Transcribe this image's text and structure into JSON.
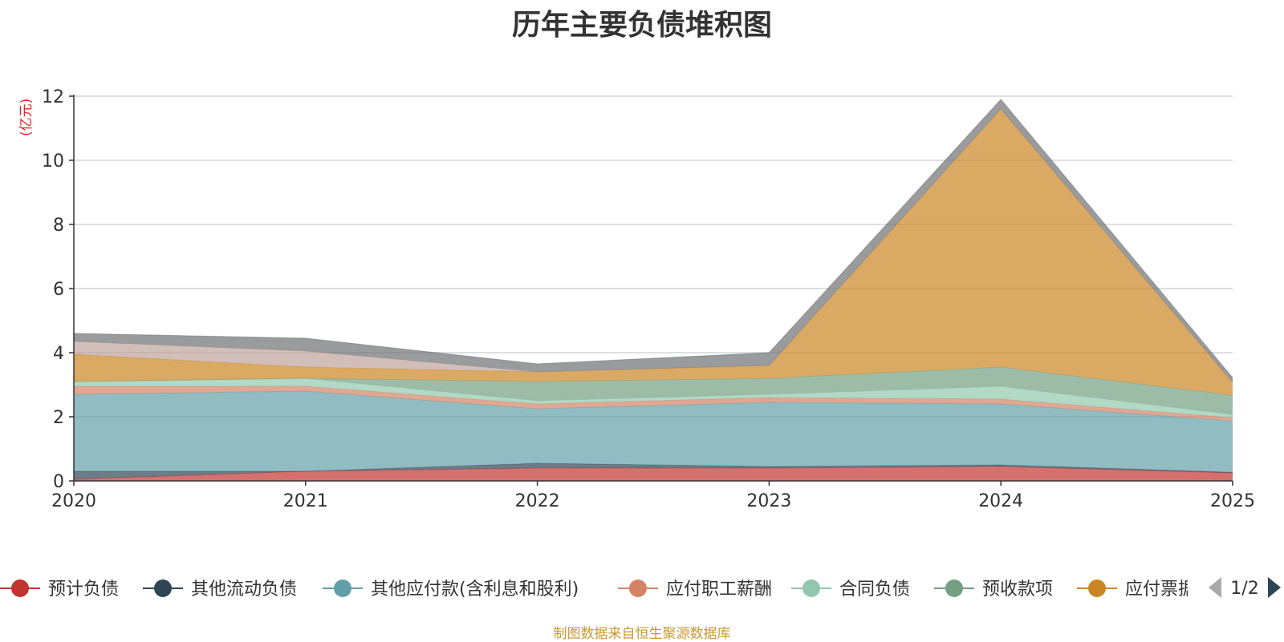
{
  "title": "历年主要负债堆积图",
  "y_unit": "(亿元)",
  "footer": "制图数据来自恒生聚源数据库",
  "pager": {
    "label": "1/2"
  },
  "chart_data": {
    "type": "area",
    "stacked": true,
    "x": [
      "2020",
      "2021",
      "2022",
      "2023",
      "2024",
      "2025"
    ],
    "ylim": [
      0,
      12
    ],
    "yticks": [
      0,
      2,
      4,
      6,
      8,
      10,
      12
    ],
    "grid": true,
    "legend_position": "bottom",
    "series": [
      {
        "name": "预计负债",
        "color": "#c23531",
        "values": [
          0.05,
          0.3,
          0.4,
          0.4,
          0.45,
          0.25
        ]
      },
      {
        "name": "其他流动负债",
        "color": "#2f4554",
        "values": [
          0.25,
          0.0,
          0.15,
          0.05,
          0.05,
          0.02
        ]
      },
      {
        "name": "其他应付款(含利息和股利)",
        "color": "#61a0a8",
        "values": [
          2.4,
          2.5,
          1.7,
          2.0,
          1.9,
          1.6
        ]
      },
      {
        "name": "应付职工薪酬",
        "color": "#d48265",
        "values": [
          0.25,
          0.15,
          0.15,
          0.15,
          0.15,
          0.1
        ]
      },
      {
        "name": "合同负债",
        "color": "#91c7ae",
        "values": [
          0.15,
          0.25,
          0.1,
          0.1,
          0.4,
          0.1
        ]
      },
      {
        "name": "预收款项",
        "color": "#749f83",
        "values": [
          0.0,
          0.0,
          0.6,
          0.5,
          0.6,
          0.6
        ]
      },
      {
        "name": "应付票据",
        "color": "#ca8622",
        "values": [
          0.85,
          0.35,
          0.3,
          0.4,
          8.05,
          0.4
        ]
      },
      {
        "name": "",
        "color": "#bda29a",
        "values": [
          0.4,
          0.5,
          0.0,
          0.0,
          0.0,
          0.0
        ]
      },
      {
        "name": "",
        "color": "#6e7074",
        "values": [
          0.25,
          0.4,
          0.25,
          0.4,
          0.3,
          0.15
        ]
      }
    ]
  }
}
